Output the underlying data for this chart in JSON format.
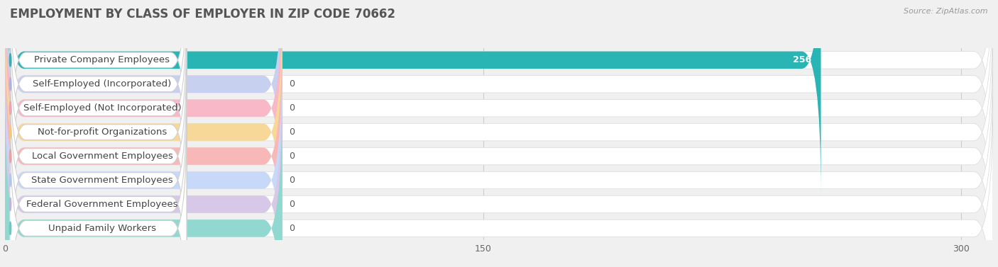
{
  "title": "EMPLOYMENT BY CLASS OF EMPLOYER IN ZIP CODE 70662",
  "source": "Source: ZipAtlas.com",
  "categories": [
    "Private Company Employees",
    "Self-Employed (Incorporated)",
    "Self-Employed (Not Incorporated)",
    "Not-for-profit Organizations",
    "Local Government Employees",
    "State Government Employees",
    "Federal Government Employees",
    "Unpaid Family Workers"
  ],
  "values": [
    256,
    0,
    0,
    0,
    0,
    0,
    0,
    0
  ],
  "bar_colors": [
    "#2ab5b5",
    "#aab4e8",
    "#f0a0b8",
    "#f5c878",
    "#f0a0a0",
    "#b0c8f0",
    "#c8b0d8",
    "#70c8c0"
  ],
  "bar_colors_light": [
    "#2ab5b5",
    "#c8d0f0",
    "#f8b8c8",
    "#f8d898",
    "#f8b8b8",
    "#c8d8f8",
    "#d8c8e8",
    "#90d8d0"
  ],
  "xlim_max": 310,
  "xticks": [
    0,
    150,
    300
  ],
  "background_color": "#f0f0f0",
  "row_bg_color": "#ffffff",
  "title_fontsize": 12,
  "source_fontsize": 8,
  "label_fontsize": 9.5,
  "value_fontsize": 9
}
